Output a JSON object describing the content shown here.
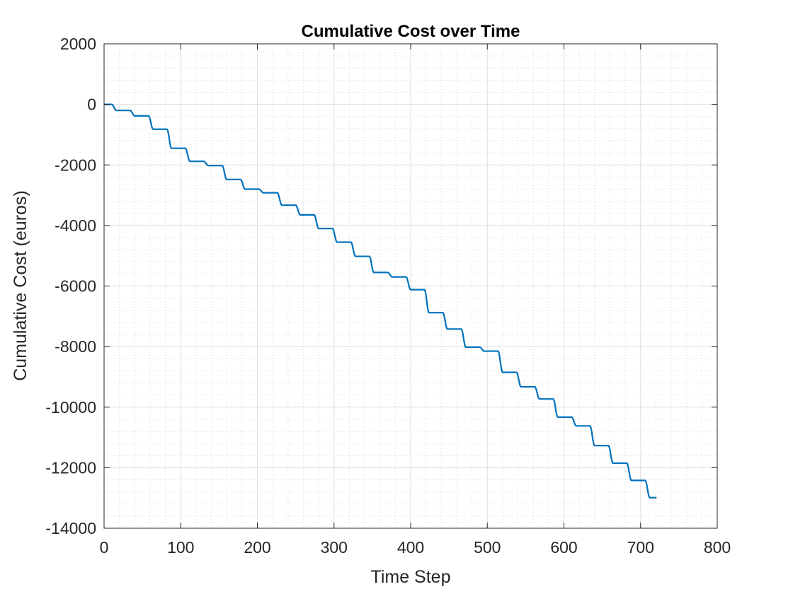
{
  "chart_data": {
    "type": "line",
    "title": "Cumulative Cost over Time",
    "xlabel": "Time Step",
    "ylabel": "Cumulative Cost (euros)",
    "xlim": [
      0,
      800
    ],
    "ylim": [
      -14000,
      2000
    ],
    "xticks": [
      0,
      100,
      200,
      300,
      400,
      500,
      600,
      700,
      800
    ],
    "yticks": [
      -14000,
      -12000,
      -10000,
      -8000,
      -6000,
      -4000,
      -2000,
      0,
      2000
    ],
    "xtick_labels": [
      "0",
      "100",
      "200",
      "300",
      "400",
      "500",
      "600",
      "700",
      "800"
    ],
    "ytick_labels": [
      "-14000",
      "-12000",
      "-10000",
      "-8000",
      "-6000",
      "-4000",
      "-2000",
      "0",
      "2000"
    ],
    "grid": true,
    "minor_grid": true,
    "series": [
      {
        "color": "#0072BD",
        "step_length": 24,
        "x_range": [
          1,
          720
        ],
        "step_levels": [
          {
            "x_end": 10,
            "y": 0
          },
          {
            "x_end": 34,
            "y": -200
          },
          {
            "x_end": 58,
            "y": -380
          },
          {
            "x_end": 82,
            "y": -820
          },
          {
            "x_end": 106,
            "y": -1450
          },
          {
            "x_end": 130,
            "y": -1880
          },
          {
            "x_end": 154,
            "y": -2020
          },
          {
            "x_end": 178,
            "y": -2480
          },
          {
            "x_end": 202,
            "y": -2800
          },
          {
            "x_end": 226,
            "y": -2920
          },
          {
            "x_end": 250,
            "y": -3330
          },
          {
            "x_end": 274,
            "y": -3650
          },
          {
            "x_end": 298,
            "y": -4100
          },
          {
            "x_end": 322,
            "y": -4550
          },
          {
            "x_end": 346,
            "y": -5020
          },
          {
            "x_end": 370,
            "y": -5550
          },
          {
            "x_end": 394,
            "y": -5700
          },
          {
            "x_end": 418,
            "y": -6120
          },
          {
            "x_end": 442,
            "y": -6880
          },
          {
            "x_end": 466,
            "y": -7420
          },
          {
            "x_end": 490,
            "y": -8020
          },
          {
            "x_end": 514,
            "y": -8150
          },
          {
            "x_end": 538,
            "y": -8850
          },
          {
            "x_end": 562,
            "y": -9330
          },
          {
            "x_end": 586,
            "y": -9730
          },
          {
            "x_end": 610,
            "y": -10330
          },
          {
            "x_end": 634,
            "y": -10620
          },
          {
            "x_end": 658,
            "y": -11270
          },
          {
            "x_end": 682,
            "y": -11850
          },
          {
            "x_end": 706,
            "y": -12420
          },
          {
            "x_end": 720,
            "y": -12990
          }
        ]
      }
    ]
  }
}
